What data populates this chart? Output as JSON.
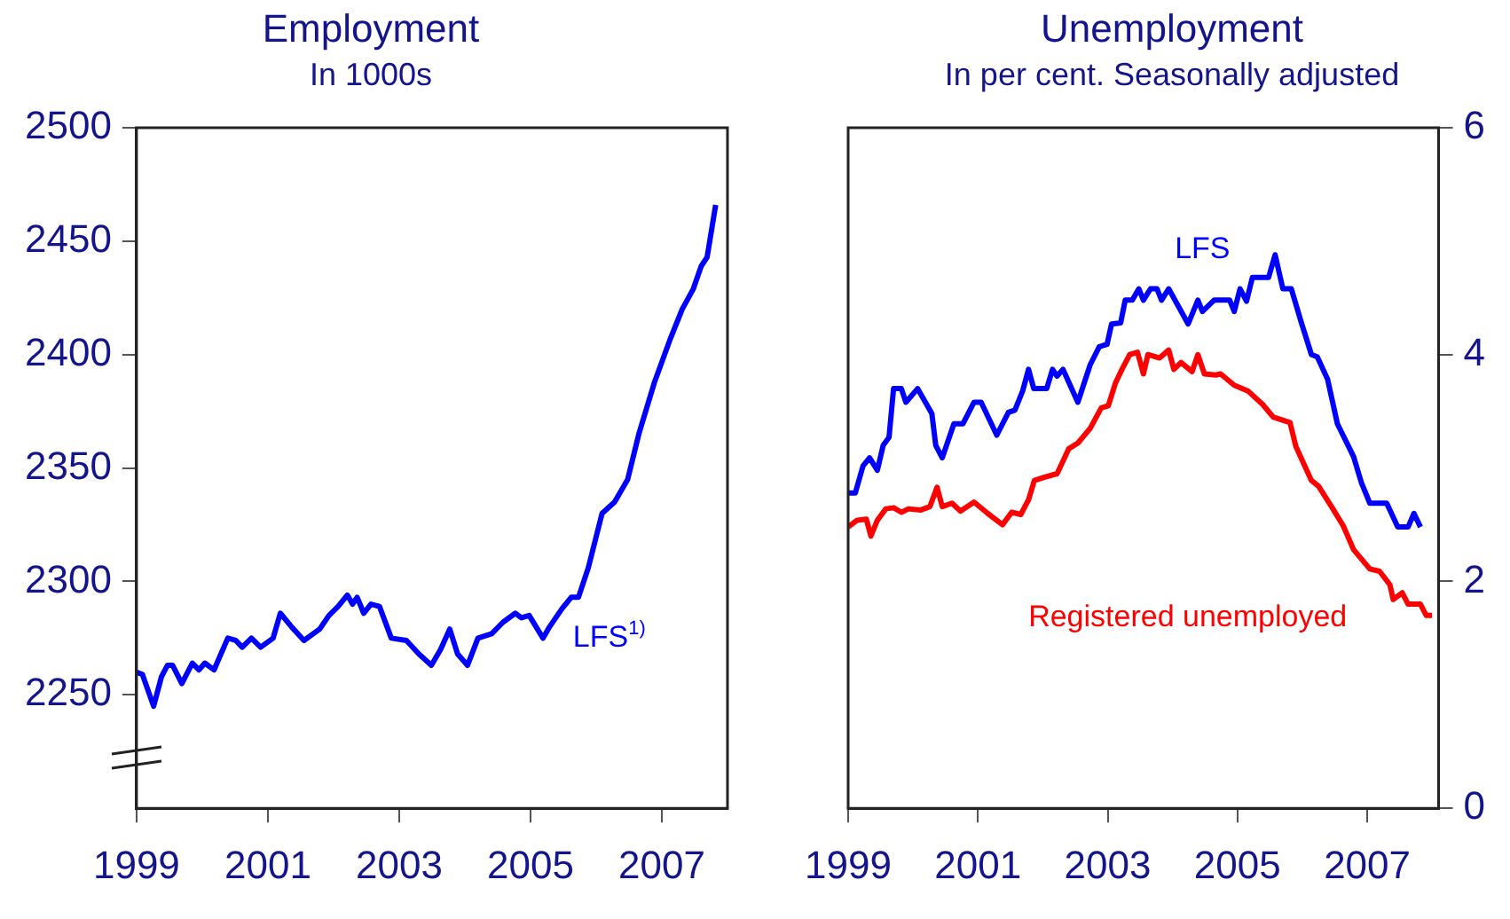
{
  "chart_data": [
    {
      "type": "line",
      "title": "Employment",
      "subtitle": "In 1000s",
      "xlim": [
        1999,
        2008
      ],
      "xticks": [
        1999,
        2001,
        2003,
        2005,
        2007
      ],
      "ylim": [
        2200,
        2500
      ],
      "yticks": [
        2250,
        2300,
        2350,
        2400,
        2450,
        2500
      ],
      "grid": false,
      "legend": false,
      "marker": "none",
      "line_style": "solid",
      "x": [
        1999.0,
        1999.09,
        1999.26,
        1999.38,
        1999.47,
        1999.55,
        1999.69,
        1999.85,
        1999.95,
        2000.04,
        2000.18,
        2000.39,
        2000.51,
        2000.61,
        2000.75,
        2000.89,
        2001.08,
        2001.19,
        2001.36,
        2001.55,
        2001.79,
        2001.93,
        2002.07,
        2002.21,
        2002.29,
        2002.36,
        2002.46,
        2002.57,
        2002.7,
        2002.88,
        2003.11,
        2003.3,
        2003.49,
        2003.63,
        2003.77,
        2003.89,
        2004.04,
        2004.2,
        2004.41,
        2004.58,
        2004.77,
        2004.86,
        2004.98,
        2005.19,
        2005.29,
        2005.48,
        2005.62,
        2005.73,
        2005.88,
        2006.09,
        2006.28,
        2006.48,
        2006.65,
        2006.89,
        2007.13,
        2007.31,
        2007.48,
        2007.6,
        2007.69,
        2007.82
      ],
      "series": [
        {
          "name": "LFS$^{1)}$",
          "color": "#0000ff",
          "values": [
            2260,
            2259,
            2245,
            2258,
            2263,
            2263,
            2255,
            2264,
            2261,
            2264,
            2261,
            2275,
            2274,
            2271,
            2275,
            2271,
            2275,
            2286,
            2280,
            2274,
            2279,
            2285,
            2289,
            2294,
            2290,
            2293,
            2286,
            2290,
            2289,
            2275,
            2274,
            2268,
            2263,
            2270,
            2279,
            2268,
            2263,
            2275,
            2277,
            2282,
            2286,
            2284,
            2285,
            2275,
            2280,
            2288,
            2293,
            2293,
            2306,
            2330,
            2335,
            2345,
            2365,
            2388,
            2407,
            2420,
            2429,
            2439,
            2443,
            2466
          ]
        }
      ]
    },
    {
      "type": "line",
      "title": "Unemployment",
      "subtitle": "In per cent. Seasonally adjusted",
      "xlim": [
        1999,
        2008.1
      ],
      "xticks": [
        1999,
        2001,
        2003,
        2005,
        2007
      ],
      "y2lim": [
        0,
        6
      ],
      "y2ticks": [
        0,
        2,
        4,
        6
      ],
      "grid": false,
      "legend": false,
      "marker": "none",
      "line_style": "solid",
      "series": [
        {
          "name": "LFS",
          "color": "#0000ff",
          "axis": "y2",
          "x": [
            1999.0,
            1999.11,
            1999.23,
            1999.33,
            1999.45,
            1999.54,
            1999.63,
            1999.7,
            1999.82,
            1999.89,
            2000.07,
            2000.29,
            2000.35,
            2000.45,
            2000.63,
            2000.77,
            2000.94,
            2001.05,
            2001.29,
            2001.47,
            2001.57,
            2001.69,
            2001.78,
            2001.86,
            2002.06,
            2002.15,
            2002.22,
            2002.31,
            2002.54,
            2002.73,
            2002.87,
            2002.99,
            2003.06,
            2003.2,
            2003.27,
            2003.38,
            2003.48,
            2003.55,
            2003.66,
            2003.76,
            2003.83,
            2003.94,
            2004.24,
            2004.39,
            2004.46,
            2004.64,
            2004.88,
            2004.95,
            2005.04,
            2005.14,
            2005.23,
            2005.48,
            2005.58,
            2005.7,
            2005.83,
            2005.98,
            2006.14,
            2006.23,
            2006.39,
            2006.54,
            2006.79,
            2006.91,
            2007.04,
            2007.3,
            2007.47,
            2007.63,
            2007.72,
            2007.82
          ],
          "values": [
            2.78,
            2.78,
            3.02,
            3.09,
            2.98,
            3.2,
            3.27,
            3.7,
            3.7,
            3.58,
            3.7,
            3.48,
            3.2,
            3.09,
            3.39,
            3.39,
            3.58,
            3.58,
            3.29,
            3.49,
            3.51,
            3.68,
            3.87,
            3.7,
            3.7,
            3.87,
            3.81,
            3.87,
            3.58,
            3.91,
            4.07,
            4.09,
            4.27,
            4.28,
            4.48,
            4.48,
            4.58,
            4.48,
            4.58,
            4.58,
            4.48,
            4.58,
            4.27,
            4.48,
            4.38,
            4.48,
            4.48,
            4.38,
            4.58,
            4.47,
            4.68,
            4.68,
            4.88,
            4.58,
            4.58,
            4.29,
            4.0,
            3.98,
            3.78,
            3.39,
            3.1,
            2.87,
            2.69,
            2.69,
            2.48,
            2.48,
            2.6,
            2.48
          ]
        },
        {
          "name": "Registered unemployed",
          "color": "#ff0000",
          "axis": "y2",
          "x": [
            1999.0,
            1999.14,
            1999.28,
            1999.35,
            1999.45,
            1999.58,
            1999.7,
            1999.82,
            1999.93,
            2000.12,
            2000.26,
            2000.37,
            2000.45,
            2000.6,
            2000.73,
            2000.94,
            2001.15,
            2001.38,
            2001.52,
            2001.66,
            2001.78,
            2001.87,
            2002.03,
            2002.22,
            2002.4,
            2002.54,
            2002.73,
            2002.9,
            2003.01,
            2003.12,
            2003.22,
            2003.34,
            2003.46,
            2003.55,
            2003.62,
            2003.8,
            2003.94,
            2004.02,
            2004.13,
            2004.3,
            2004.39,
            2004.49,
            2004.67,
            2004.74,
            2004.95,
            2005.16,
            2005.39,
            2005.55,
            2005.81,
            2005.9,
            2006.14,
            2006.25,
            2006.46,
            2006.63,
            2006.79,
            2007.04,
            2007.19,
            2007.35,
            2007.4,
            2007.54,
            2007.63,
            2007.82,
            2007.91,
            2008.0
          ],
          "values": [
            2.48,
            2.54,
            2.55,
            2.4,
            2.54,
            2.64,
            2.65,
            2.61,
            2.64,
            2.63,
            2.66,
            2.83,
            2.66,
            2.69,
            2.62,
            2.7,
            2.6,
            2.5,
            2.61,
            2.59,
            2.72,
            2.89,
            2.92,
            2.95,
            3.17,
            3.22,
            3.35,
            3.53,
            3.55,
            3.75,
            3.87,
            4.0,
            4.02,
            3.83,
            4.0,
            3.97,
            4.04,
            3.87,
            3.93,
            3.85,
            4.0,
            3.83,
            3.82,
            3.83,
            3.73,
            3.68,
            3.56,
            3.45,
            3.4,
            3.19,
            2.89,
            2.84,
            2.65,
            2.49,
            2.28,
            2.11,
            2.09,
            1.97,
            1.84,
            1.9,
            1.8,
            1.8,
            1.7,
            1.7
          ]
        }
      ]
    }
  ]
}
